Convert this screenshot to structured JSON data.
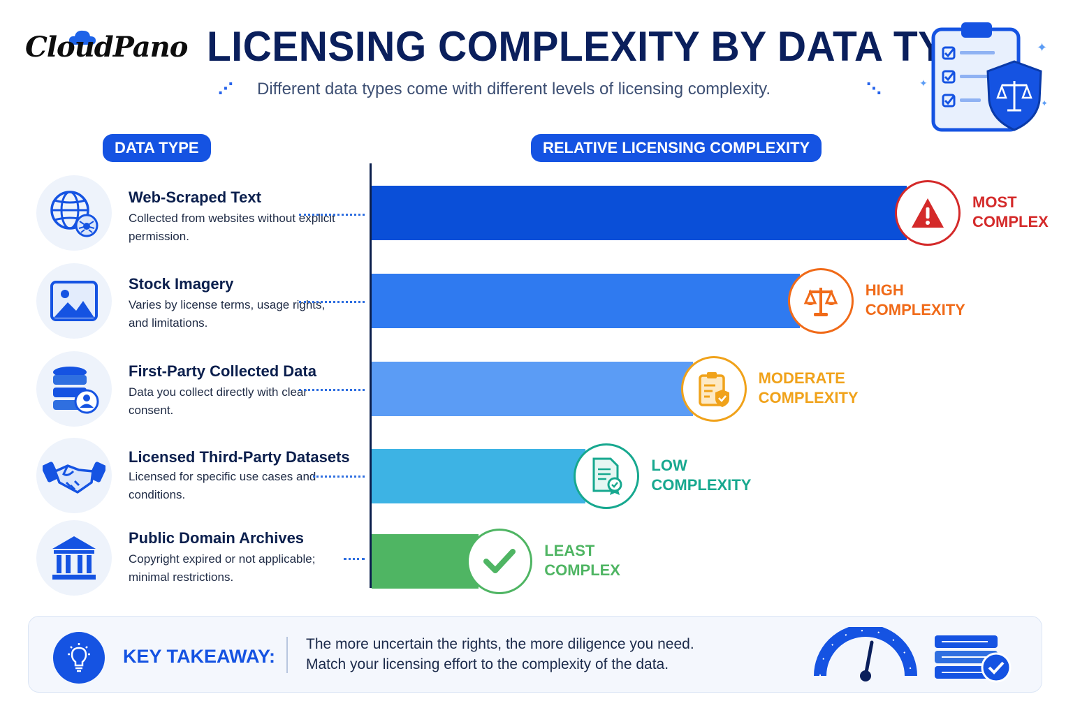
{
  "brand": {
    "logo_text": "CloudPano"
  },
  "header": {
    "title": "LICENSING COMPLEXITY BY DATA TYPE",
    "subtitle": "Different data types come with different levels of licensing complexity."
  },
  "columns": {
    "left_header": "DATA TYPE",
    "right_header": "RELATIVE LICENSING COMPLEXITY"
  },
  "rows": [
    {
      "title": "Web-Scraped Text",
      "desc": "Collected from websites without explicit permission.",
      "icon": "globe-spider-icon"
    },
    {
      "title": "Stock Imagery",
      "desc": "Varies by license terms, usage rights, and limitations.",
      "icon": "image-icon"
    },
    {
      "title": "First-Party Collected Data",
      "desc": "Data you collect directly with clear consent.",
      "icon": "database-user-icon"
    },
    {
      "title": "Licensed Third-Party Datasets",
      "desc": "Licensed for specific use cases and conditions.",
      "icon": "handshake-icon"
    },
    {
      "title": "Public Domain Archives",
      "desc": "Copyright expired or not applicable; minimal restrictions.",
      "icon": "museum-icon"
    }
  ],
  "chart_data": {
    "type": "bar",
    "orientation": "horizontal",
    "categories": [
      "Web-Scraped Text",
      "Stock Imagery",
      "First-Party Collected Data",
      "Licensed Third-Party Datasets",
      "Public Domain Archives"
    ],
    "values": [
      5,
      4,
      3,
      2,
      1
    ],
    "level_labels": [
      "MOST\nCOMPLEX",
      "HIGH\nCOMPLEXITY",
      "MODERATE\nCOMPLEXITY",
      "LOW\nCOMPLEXITY",
      "LEAST\nCOMPLEX"
    ],
    "level_icons": [
      "warning-icon",
      "scales-icon",
      "clipboard-shield-icon",
      "certificate-icon",
      "checkmark-icon"
    ],
    "bar_colors": [
      "#0a4fd8",
      "#2f7af0",
      "#5b9cf5",
      "#3db3e4",
      "#4fb563"
    ],
    "label_colors": [
      "#d42a2a",
      "#f06a18",
      "#f0a21a",
      "#17a88f",
      "#4fb563"
    ],
    "xlim": [
      0,
      5
    ],
    "ylabel": "DATA TYPE",
    "xlabel": "RELATIVE LICENSING COMPLEXITY"
  },
  "takeaway": {
    "label": "KEY TAKEAWAY:",
    "line1": "The more uncertain the rights, the more diligence you need.",
    "line2": "Match your licensing effort to the complexity of the data."
  }
}
